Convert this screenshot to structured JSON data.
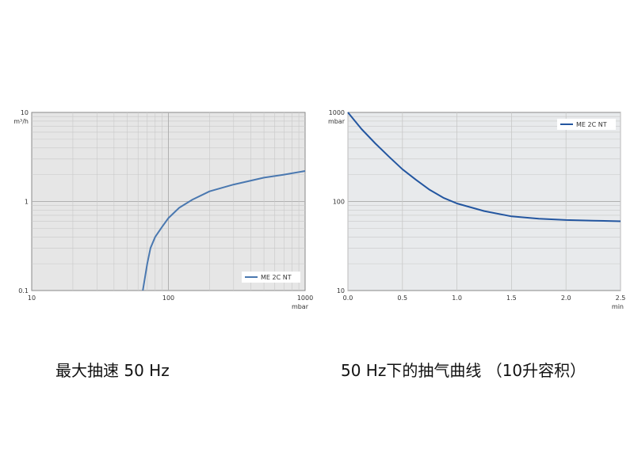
{
  "chart_data": [
    {
      "type": "line",
      "x_scale": "log",
      "y_scale": "log",
      "xlim": [
        10,
        1000
      ],
      "ylim": [
        0.1,
        10
      ],
      "x_ticks": [
        "10",
        "100",
        "1000"
      ],
      "y_ticks": [
        "0.1",
        "1",
        "10"
      ],
      "xlabel": "mbar",
      "ylabel": "m³/h",
      "grid": true,
      "legend_position": "bottom-right",
      "series": [
        {
          "name": "ME 2C NT",
          "color": "#4a78b0",
          "x": [
            65,
            70,
            74,
            80,
            90,
            100,
            120,
            150,
            200,
            300,
            500,
            700,
            1000
          ],
          "y": [
            0.1,
            0.2,
            0.3,
            0.4,
            0.52,
            0.65,
            0.85,
            1.05,
            1.3,
            1.55,
            1.85,
            2.0,
            2.2
          ]
        }
      ],
      "caption": "最大抽速 50 Hz"
    },
    {
      "type": "line",
      "y_scale": "log",
      "xlim": [
        0,
        2.5
      ],
      "ylim": [
        10,
        1000
      ],
      "x_ticks": [
        "0.0",
        "0.5",
        "1.0",
        "1.5",
        "2.0",
        "2.5"
      ],
      "y_ticks": [
        "10",
        "100",
        "1000"
      ],
      "xlabel": "min",
      "ylabel": "mbar",
      "grid": true,
      "legend_position": "top-right",
      "series": [
        {
          "name": "ME 2C NT",
          "color": "#2356a0",
          "x": [
            0,
            0.125,
            0.25,
            0.375,
            0.5,
            0.625,
            0.75,
            0.875,
            1.0,
            1.25,
            1.5,
            1.75,
            2.0,
            2.25,
            2.5
          ],
          "y": [
            1000,
            650,
            450,
            320,
            230,
            175,
            135,
            110,
            95,
            78,
            68,
            64,
            62,
            61,
            60
          ]
        }
      ],
      "caption": "50 Hz下的抽气曲线 （10升容积）"
    }
  ]
}
